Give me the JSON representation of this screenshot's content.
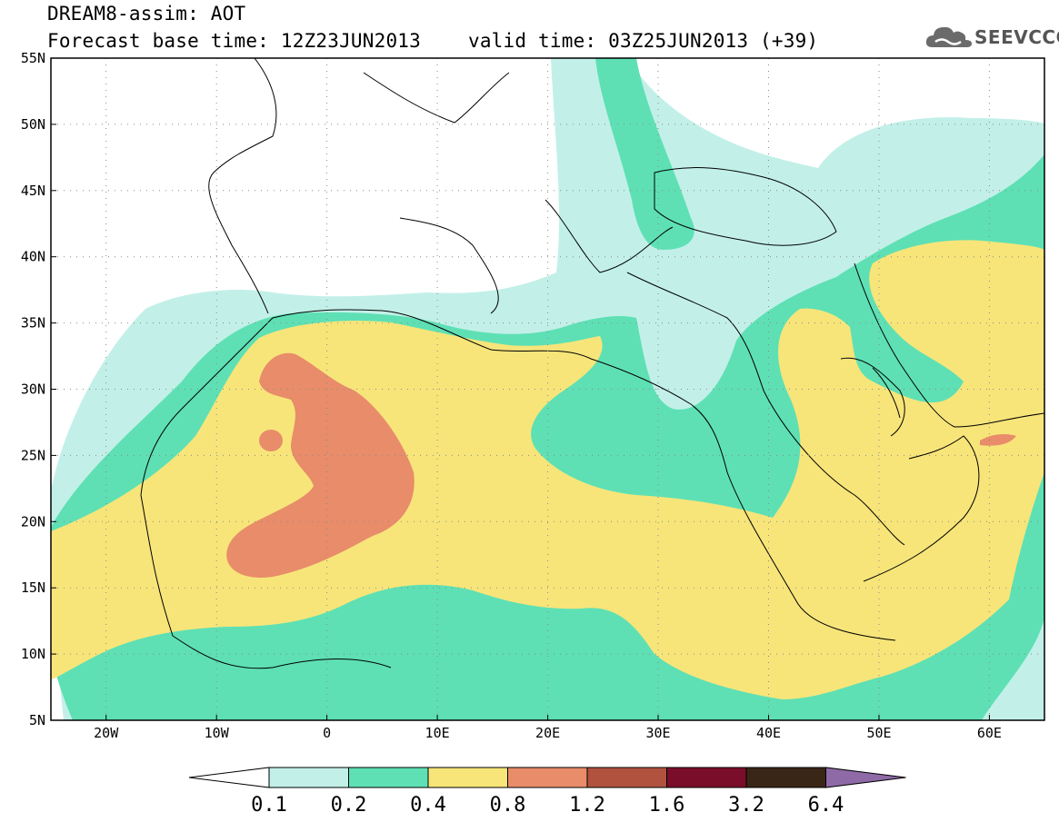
{
  "title": {
    "line1": "DREAM8-assim: AOT",
    "base_time": "Forecast base time: 12Z23JUN2013",
    "valid_time": "valid time: 03Z25JUN2013 (+39)"
  },
  "logo": {
    "text": "SEEVCCC",
    "icon": "cloud-icon"
  },
  "map": {
    "lon_range": [
      -25,
      65
    ],
    "lat_range": [
      5,
      55
    ],
    "lat_labels": [
      "55N",
      "50N",
      "45N",
      "40N",
      "35N",
      "30N",
      "25N",
      "20N",
      "15N",
      "10N",
      "5N"
    ],
    "lon_labels": [
      "20W",
      "10W",
      "0",
      "10E",
      "20E",
      "30E",
      "40E",
      "50E",
      "60E"
    ],
    "grid": "dotted"
  },
  "legend": {
    "colors": [
      "#ffffff",
      "#c2f0e8",
      "#5ee0b4",
      "#f7e57a",
      "#e88c6a",
      "#b0523e",
      "#7a0e2a",
      "#3a2616",
      "#8e6aa6"
    ],
    "labels": [
      "0.1",
      "0.2",
      "0.4",
      "0.8",
      "1.2",
      "1.6",
      "3.2",
      "6.4"
    ]
  }
}
